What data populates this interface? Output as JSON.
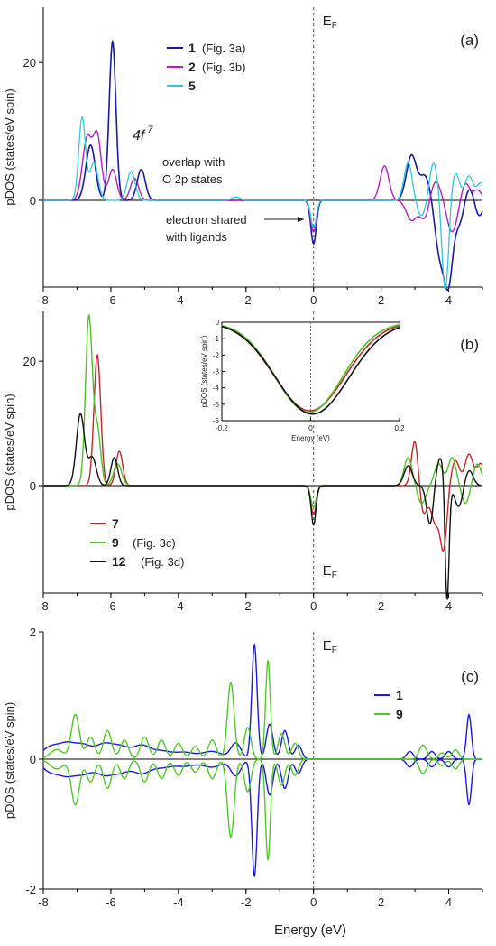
{
  "figure": {
    "xlabel": "Energy (eV)"
  },
  "chart_data": [
    {
      "type": "line",
      "panel_label": "(a)",
      "ylabel": "pDOS (states/eV spin)",
      "xlim": [
        -8,
        5
      ],
      "ylim": [
        -11,
        28
      ],
      "xticks": [
        -8,
        -6,
        -4,
        -2,
        0,
        2,
        4
      ],
      "xtick_labels": [
        "-8",
        "-6",
        "-4",
        "-2",
        "0",
        "2",
        "4"
      ],
      "yticks": [
        0,
        20
      ],
      "ytick_labels": [
        "0",
        "20"
      ],
      "fermi_label": "EF",
      "legend": {
        "placement": "top-right",
        "entries": [
          {
            "num": "1",
            "ref": "(Fig. 3a)",
            "color": "#1a1aa0"
          },
          {
            "num": "2",
            "ref": "(Fig. 3b)",
            "color": "#b020c0"
          },
          {
            "num": "5",
            "ref": "",
            "color": "#30c8d8"
          }
        ]
      },
      "annotations": {
        "fshell_base": "4f",
        "fshell_sup": "7",
        "overlap_1": "overlap with",
        "overlap_2": "O 2p states",
        "shared_1": "electron shared",
        "shared_2": "with ligands"
      },
      "series": [
        {
          "name": "1",
          "color": "#1a1aa0",
          "width": 1.6,
          "peaks": [
            [
              -6.6,
              8,
              0.14
            ],
            [
              -5.95,
              23,
              0.1
            ],
            [
              -5.1,
              4.5,
              0.12
            ],
            [
              0,
              -5.5,
              0.08
            ],
            [
              2.9,
              6.5,
              0.15
            ],
            [
              3.3,
              3.5,
              0.15
            ],
            [
              3.75,
              -7,
              0.15
            ],
            [
              4.0,
              -9,
              0.12
            ],
            [
              4.3,
              -3,
              0.15
            ],
            [
              4.6,
              2,
              0.12
            ],
            [
              4.9,
              -2,
              0.12
            ]
          ]
        },
        {
          "name": "2",
          "color": "#b020c0",
          "width": 1.4,
          "peaks": [
            [
              -6.7,
              9,
              0.14
            ],
            [
              -6.4,
              9,
              0.12
            ],
            [
              -5.95,
              4.5,
              0.12
            ],
            [
              -5.3,
              3.2,
              0.12
            ],
            [
              0,
              -4,
              0.08
            ],
            [
              2.1,
              5,
              0.13
            ],
            [
              2.9,
              -2.5,
              0.15
            ],
            [
              3.3,
              -2.5,
              0.15
            ],
            [
              3.6,
              3,
              0.15
            ],
            [
              4.1,
              -4,
              0.15
            ],
            [
              4.5,
              2.5,
              0.12
            ],
            [
              4.85,
              1.5,
              0.12
            ]
          ]
        },
        {
          "name": "5",
          "color": "#30c8d8",
          "width": 1.3,
          "peaks": [
            [
              -6.85,
              12,
              0.1
            ],
            [
              -6.5,
              5.5,
              0.12
            ],
            [
              -5.4,
              4.2,
              0.12
            ],
            [
              -2.3,
              0.5,
              0.12
            ],
            [
              0,
              -3.5,
              0.08
            ],
            [
              2.8,
              5.5,
              0.12
            ],
            [
              3.2,
              -2,
              0.14
            ],
            [
              3.55,
              5.5,
              0.12
            ],
            [
              3.9,
              -11.5,
              0.1
            ],
            [
              4.2,
              4,
              0.12
            ],
            [
              4.6,
              3.5,
              0.12
            ],
            [
              4.95,
              2.5,
              0.12
            ]
          ]
        }
      ]
    },
    {
      "type": "line",
      "panel_label": "(b)",
      "ylabel": "pDOS (states/eV spin)",
      "xlim": [
        -8,
        5
      ],
      "ylim": [
        -15,
        28
      ],
      "xticks": [
        -8,
        -6,
        -4,
        -2,
        0,
        2,
        4
      ],
      "xtick_labels": [
        "-8",
        "-6",
        "-4",
        "-2",
        "0",
        "2",
        "4"
      ],
      "yticks": [
        0,
        20
      ],
      "ytick_labels": [
        "0",
        "20"
      ],
      "fermi_label": "EF",
      "legend": {
        "placement": "bottom-left",
        "entries": [
          {
            "num": "7",
            "ref": "",
            "color": "#c0282a"
          },
          {
            "num": "9",
            "ref": "(Fig. 3c)",
            "color": "#50c028"
          },
          {
            "num": "12",
            "ref": "(Fig. 3d)",
            "color": "#101010"
          }
        ]
      },
      "series": [
        {
          "name": "7",
          "color": "#c0282a",
          "width": 1.4,
          "peaks": [
            [
              -6.4,
              21,
              0.1
            ],
            [
              -5.75,
              5.5,
              0.1
            ],
            [
              0,
              -4,
              0.08
            ],
            [
              3.0,
              7.5,
              0.1
            ],
            [
              3.25,
              -4,
              0.12
            ],
            [
              3.6,
              -5,
              0.12
            ],
            [
              3.85,
              -8.5,
              0.1
            ],
            [
              4.2,
              4,
              0.12
            ],
            [
              4.6,
              5,
              0.12
            ],
            [
              4.95,
              3.5,
              0.12
            ]
          ]
        },
        {
          "name": "9",
          "color": "#50c028",
          "width": 1.4,
          "peaks": [
            [
              -6.65,
              27,
              0.1
            ],
            [
              -6.4,
              9,
              0.1
            ],
            [
              -5.8,
              3.5,
              0.12
            ],
            [
              0,
              -3,
              0.08
            ],
            [
              2.8,
              4.5,
              0.12
            ],
            [
              3.2,
              -2.5,
              0.12
            ],
            [
              3.7,
              3.5,
              0.12
            ],
            [
              4.1,
              4.5,
              0.12
            ],
            [
              4.5,
              -2.5,
              0.12
            ],
            [
              4.85,
              3.5,
              0.12
            ]
          ]
        },
        {
          "name": "12",
          "color": "#101010",
          "width": 1.4,
          "peaks": [
            [
              -6.9,
              11.5,
              0.12
            ],
            [
              -6.55,
              4.5,
              0.12
            ],
            [
              -5.9,
              4.5,
              0.1
            ],
            [
              0,
              -5.5,
              0.07
            ],
            [
              2.8,
              3.2,
              0.12
            ],
            [
              3.45,
              -5.5,
              0.1
            ],
            [
              3.75,
              4.5,
              0.12
            ],
            [
              3.95,
              -17,
              0.06
            ],
            [
              4.3,
              -3,
              0.12
            ],
            [
              4.6,
              2.5,
              0.12
            ]
          ]
        }
      ],
      "inset": {
        "xlabel": "Energy (eV)",
        "ylabel": "pDOS (states/eV spin)",
        "xlim": [
          -0.2,
          0.2
        ],
        "ylim": [
          -6,
          0
        ],
        "xticks": [
          -0.2,
          0,
          0.2
        ],
        "xtick_labels": [
          "-0.2",
          "0",
          "0.2"
        ],
        "yticks": [
          0,
          -1,
          -2,
          -3,
          -4,
          -5,
          -6
        ],
        "ytick_labels": [
          "0",
          "-1",
          "-2",
          "-3",
          "-4",
          "-5",
          "-6"
        ],
        "curves": [
          {
            "name": "7",
            "color": "#c0282a",
            "depth": 5.4,
            "center": -0.002,
            "sigma": 0.08
          },
          {
            "name": "9",
            "color": "#50c028",
            "depth": 5.5,
            "center": -0.004,
            "sigma": 0.076
          },
          {
            "name": "12",
            "color": "#101010",
            "depth": 5.6,
            "center": 0.004,
            "sigma": 0.082
          }
        ]
      }
    },
    {
      "type": "line",
      "panel_label": "(c)",
      "ylabel": "pDOS (states/eV spin)",
      "xlim": [
        -8,
        5
      ],
      "ylim": [
        -2,
        2
      ],
      "xticks": [
        -8,
        -6,
        -4,
        -2,
        0,
        2,
        4
      ],
      "xtick_labels": [
        "-8",
        "-6",
        "-4",
        "-2",
        "0",
        "2",
        "4"
      ],
      "yticks": [
        -2,
        0,
        2
      ],
      "ytick_labels": [
        "-2",
        "0",
        "2"
      ],
      "fermi_label": "EF",
      "legend": {
        "placement": "right",
        "entries": [
          {
            "num": "1",
            "ref": "",
            "color": "#1a1ae0"
          },
          {
            "num": "9",
            "ref": "",
            "color": "#50c828"
          }
        ]
      },
      "series": [
        {
          "name": "1",
          "color": "#1a1ae0",
          "width": 1.4,
          "mirror": true,
          "peaks": [
            [
              -7.8,
              0.18,
              0.25
            ],
            [
              -7.3,
              0.22,
              0.25
            ],
            [
              -6.8,
              0.2,
              0.25
            ],
            [
              -6.2,
              0.22,
              0.25
            ],
            [
              -5.7,
              0.18,
              0.25
            ],
            [
              -5.1,
              0.2,
              0.25
            ],
            [
              -4.5,
              0.12,
              0.3
            ],
            [
              -3.8,
              0.1,
              0.3
            ],
            [
              -3.0,
              0.12,
              0.3
            ],
            [
              -2.3,
              0.25,
              0.15
            ],
            [
              -1.75,
              1.8,
              0.08
            ],
            [
              -1.3,
              0.55,
              0.1
            ],
            [
              -0.85,
              0.45,
              0.1
            ],
            [
              -0.45,
              0.22,
              0.1
            ],
            [
              2.85,
              0.12,
              0.1
            ],
            [
              3.5,
              0.12,
              0.1
            ],
            [
              4.0,
              0.12,
              0.1
            ],
            [
              4.6,
              0.7,
              0.07
            ]
          ]
        },
        {
          "name": "9",
          "color": "#50c828",
          "width": 1.4,
          "mirror": true,
          "peaks": [
            [
              -7.6,
              0.15,
              0.2
            ],
            [
              -7.05,
              0.7,
              0.12
            ],
            [
              -6.6,
              0.35,
              0.12
            ],
            [
              -6.1,
              0.45,
              0.12
            ],
            [
              -5.6,
              0.3,
              0.12
            ],
            [
              -5.0,
              0.35,
              0.12
            ],
            [
              -4.5,
              0.3,
              0.12
            ],
            [
              -4.0,
              0.25,
              0.12
            ],
            [
              -3.5,
              0.2,
              0.12
            ],
            [
              -3.0,
              0.3,
              0.12
            ],
            [
              -2.45,
              1.2,
              0.1
            ],
            [
              -1.95,
              0.5,
              0.1
            ],
            [
              -1.35,
              1.55,
              0.07
            ],
            [
              -0.95,
              0.4,
              0.1
            ],
            [
              -0.55,
              0.25,
              0.1
            ],
            [
              3.2,
              0.15,
              0.1
            ],
            [
              3.3,
              0.1,
              0.1
            ],
            [
              3.8,
              0.1,
              0.1
            ],
            [
              4.2,
              0.15,
              0.1
            ]
          ]
        }
      ]
    }
  ]
}
